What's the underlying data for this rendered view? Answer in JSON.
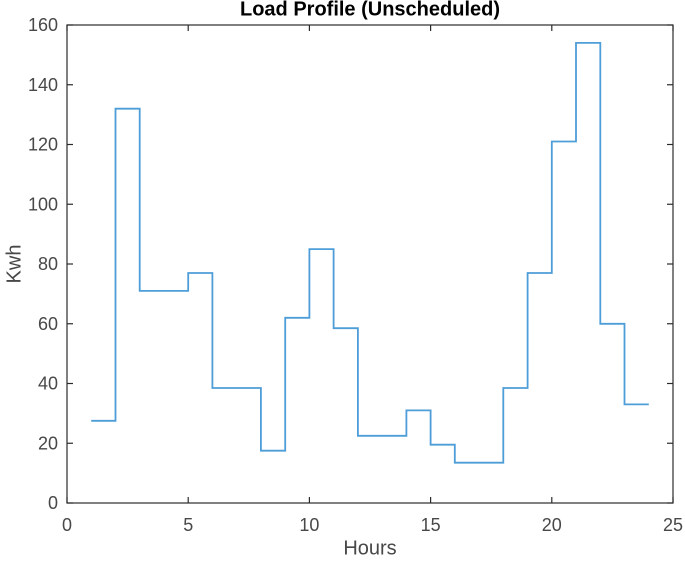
{
  "figure": {
    "background": "#ffffff"
  },
  "chart_data": {
    "type": "line",
    "subtype": "stairs",
    "title": "Load Profile (Unscheduled)",
    "xlabel": "Hours",
    "ylabel": "Kwh",
    "x": [
      1,
      2,
      3,
      4,
      5,
      6,
      7,
      8,
      9,
      10,
      11,
      12,
      13,
      14,
      15,
      16,
      17,
      18,
      19,
      20,
      21,
      22,
      23,
      24
    ],
    "values": [
      27.5,
      132,
      71,
      71,
      77,
      38.5,
      38.5,
      17.5,
      62,
      85,
      58.5,
      22.5,
      22.5,
      31,
      19.5,
      13.5,
      13.5,
      38.5,
      77,
      121,
      154,
      60,
      33,
      33
    ],
    "xlim": [
      0,
      25
    ],
    "ylim": [
      0,
      160
    ],
    "xticks": [
      0,
      5,
      10,
      15,
      20,
      25
    ],
    "yticks": [
      0,
      20,
      40,
      60,
      80,
      100,
      120,
      140,
      160
    ],
    "grid": false,
    "legend_position": "none",
    "line_color": "#4d9dd8",
    "axis_color": "#2b2b2b",
    "tick_label_color": "#484848"
  }
}
